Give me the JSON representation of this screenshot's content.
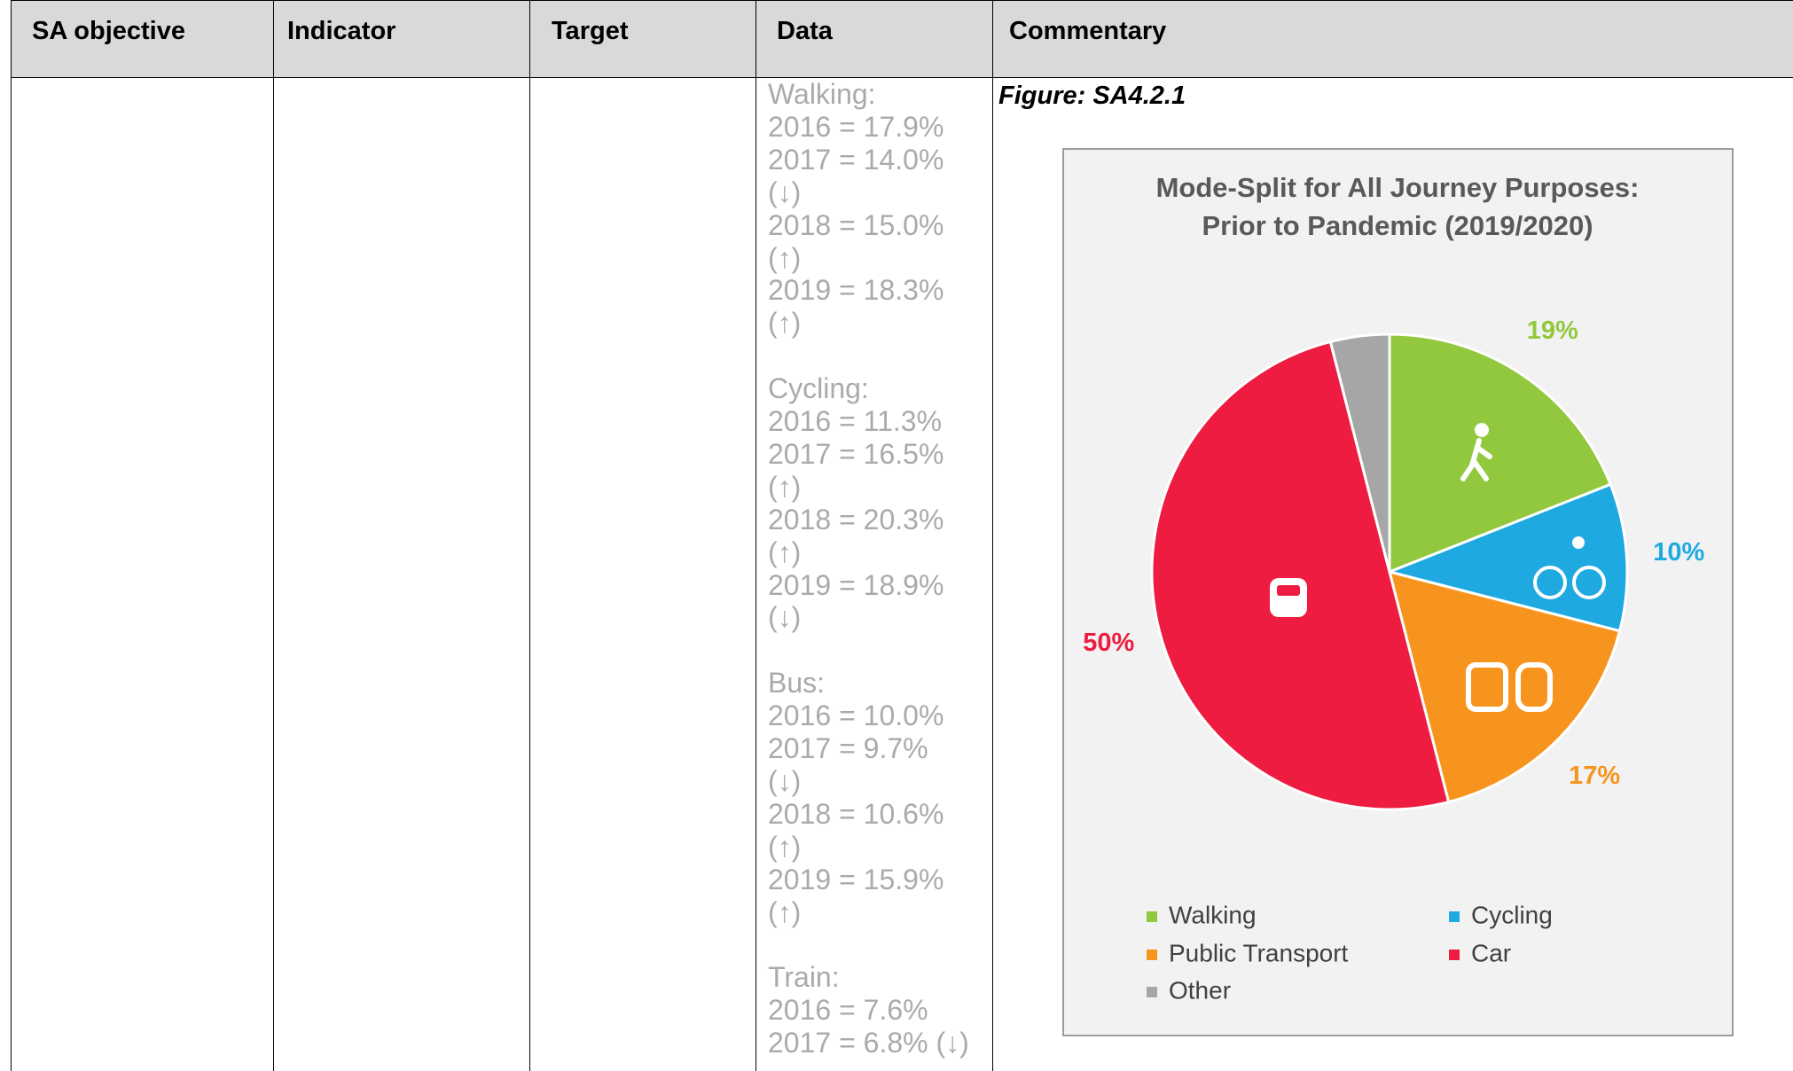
{
  "table": {
    "headers": [
      "SA objective",
      "Indicator",
      "Target",
      "Data",
      "Commentary"
    ],
    "data": [
      {
        "label": "Walking:",
        "lines": [
          "2016 = 17.9%",
          "2017 = 14.0%",
          "(↓)",
          "2018 = 15.0%",
          "(↑)",
          "2019 = 18.3%",
          "(↑)"
        ]
      },
      {
        "label": "Cycling:",
        "lines": [
          "2016 = 11.3%",
          "2017 = 16.5%",
          "(↑)",
          "2018 = 20.3%",
          "(↑)",
          "2019 = 18.9%",
          "(↓)"
        ]
      },
      {
        "label": "Bus:",
        "lines": [
          "2016 = 10.0%",
          "2017 = 9.7%",
          "(↓)",
          "2018 = 10.6%",
          "(↑)",
          "2019 = 15.9%",
          "(↑)"
        ]
      },
      {
        "label": "Train:",
        "lines": [
          "2016 = 7.6%",
          "2017 = 6.8% (↓)"
        ]
      }
    ],
    "figure_label": "Figure: SA4.2.1"
  },
  "chart_data": {
    "type": "pie",
    "title": "Mode-Split for All Journey Purposes: Prior to Pandemic (2019/2020)",
    "title_lines": [
      "Mode-Split for All Journey Purposes:",
      "Prior to Pandemic (2019/2020)"
    ],
    "categories": [
      "Walking",
      "Cycling",
      "Public Transport",
      "Car",
      "Other"
    ],
    "values": [
      19,
      10,
      17,
      50,
      4
    ],
    "value_labels": [
      "19%",
      "10%",
      "17%",
      "50%",
      null
    ],
    "colors": [
      "#92c83e",
      "#1ea9e1",
      "#f7941d",
      "#ed1c40",
      "#a6a6a6"
    ],
    "legend": "bottom"
  }
}
